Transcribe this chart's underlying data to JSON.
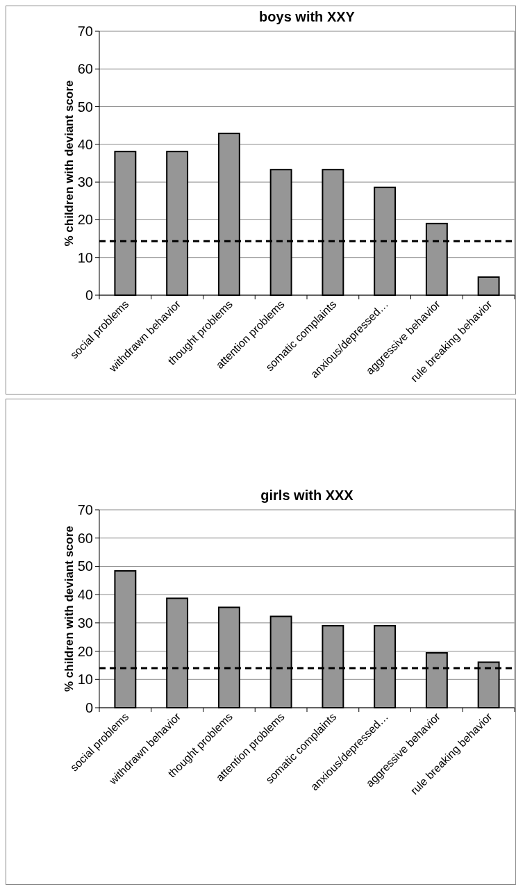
{
  "chart_data": [
    {
      "type": "bar",
      "title": "boys with XXY",
      "ylabel": "% children with deviant score",
      "categories": [
        "social problems",
        "withdrawn behavior",
        "thought problems",
        "attention problems",
        "somatic complaints",
        "anxious/depressed…",
        "aggressive behavior",
        "rule breaking behavior"
      ],
      "values": [
        38.1,
        38.1,
        42.9,
        33.3,
        33.3,
        28.6,
        19.0,
        4.8
      ],
      "color": "#969696",
      "ylim": [
        0,
        70
      ],
      "yticks": [
        0,
        10,
        20,
        30,
        40,
        50,
        60,
        70
      ],
      "grid": "y",
      "ref_lines": [
        {
          "axis": "y",
          "value": 14.3,
          "color": "#000000",
          "line_style": "dashed"
        }
      ]
    },
    {
      "type": "bar",
      "title": "girls with XXX",
      "ylabel": "% children with deviant score",
      "categories": [
        "social problems",
        "withdrawn behavior",
        "thought problems",
        "attention problems",
        "somatic complaints",
        "anxious/depressed…",
        "aggressive behavior",
        "rule breaking behavior"
      ],
      "values": [
        48.4,
        38.7,
        35.5,
        32.3,
        29.0,
        29.0,
        19.4,
        16.1
      ],
      "color": "#969696",
      "ylim": [
        0,
        70
      ],
      "yticks": [
        0,
        10,
        20,
        30,
        40,
        50,
        60,
        70
      ],
      "grid": "y",
      "ref_lines": [
        {
          "axis": "y",
          "value": 14,
          "color": "#000000",
          "line_style": "dashed"
        }
      ]
    }
  ]
}
